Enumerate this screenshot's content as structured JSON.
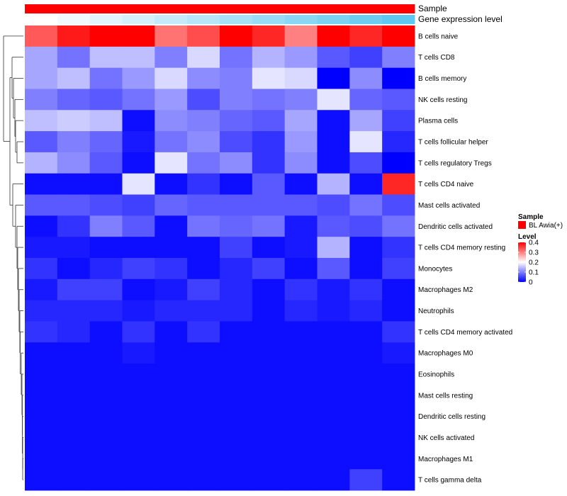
{
  "chart_data": {
    "type": "heatmap",
    "title": "",
    "xlabel": "",
    "ylabel": "",
    "annotation_tracks": [
      {
        "name": "Sample",
        "values": [
          "BL Awia(+)",
          "BL Awia(+)",
          "BL Awia(+)",
          "BL Awia(+)",
          "BL Awia(+)",
          "BL Awia(+)",
          "BL Awia(+)",
          "BL Awia(+)",
          "BL Awia(+)",
          "BL Awia(+)",
          "BL Awia(+)",
          "BL Awia(+)"
        ]
      },
      {
        "name": "Gene expression level",
        "values": [
          0.0,
          0.09,
          0.18,
          0.27,
          0.36,
          0.45,
          0.55,
          0.64,
          0.73,
          0.82,
          0.91,
          1.0
        ]
      }
    ],
    "rows": [
      "B cells naive",
      "T cells CD8",
      "B cells memory",
      "NK cells resting",
      "Plasma cells",
      "T cells follicular helper",
      "T cells regulatory  Tregs",
      "T cells CD4 naive",
      "Mast cells activated",
      "Dendritic cells activated",
      "T cells CD4 memory resting",
      "Monocytes",
      "Macrophages M2",
      "Neutrophils",
      "T cells CD4 memory activated",
      "Macrophages M0",
      "Eosinophils",
      "Mast cells resting",
      "Dendritic cells resting",
      "NK cells activated",
      "Macrophages M1",
      "T cells gamma delta"
    ],
    "values": [
      [
        0.33,
        0.38,
        0.4,
        0.42,
        0.31,
        0.34,
        0.42,
        0.37,
        0.3,
        0.42,
        0.37,
        0.4
      ],
      [
        0.13,
        0.09,
        0.15,
        0.15,
        0.1,
        0.17,
        0.09,
        0.14,
        0.12,
        0.07,
        0.05,
        0.1
      ],
      [
        0.13,
        0.15,
        0.09,
        0.12,
        0.17,
        0.11,
        0.1,
        0.18,
        0.17,
        0.0,
        0.11,
        0.0
      ],
      [
        0.1,
        0.08,
        0.07,
        0.09,
        0.12,
        0.06,
        0.1,
        0.09,
        0.1,
        0.18,
        0.08,
        0.07
      ],
      [
        0.15,
        0.16,
        0.15,
        0.01,
        0.11,
        0.1,
        0.08,
        0.07,
        0.13,
        0.01,
        0.13,
        0.05
      ],
      [
        0.07,
        0.1,
        0.08,
        0.02,
        0.09,
        0.11,
        0.06,
        0.04,
        0.12,
        0.01,
        0.18,
        0.03
      ],
      [
        0.14,
        0.11,
        0.07,
        0.01,
        0.18,
        0.09,
        0.11,
        0.04,
        0.11,
        0.01,
        0.06,
        0.0
      ],
      [
        0.01,
        0.01,
        0.01,
        0.18,
        0.01,
        0.04,
        0.01,
        0.07,
        0.01,
        0.14,
        0.01,
        0.37
      ],
      [
        0.07,
        0.07,
        0.06,
        0.05,
        0.08,
        0.07,
        0.07,
        0.07,
        0.07,
        0.06,
        0.09,
        0.06
      ],
      [
        0.01,
        0.04,
        0.1,
        0.07,
        0.01,
        0.09,
        0.08,
        0.09,
        0.02,
        0.07,
        0.06,
        0.09
      ],
      [
        0.02,
        0.02,
        0.01,
        0.01,
        0.01,
        0.01,
        0.05,
        0.01,
        0.02,
        0.14,
        0.01,
        0.04
      ],
      [
        0.04,
        0.01,
        0.03,
        0.05,
        0.04,
        0.01,
        0.03,
        0.05,
        0.01,
        0.07,
        0.01,
        0.05
      ],
      [
        0.02,
        0.05,
        0.05,
        0.01,
        0.02,
        0.05,
        0.03,
        0.01,
        0.04,
        0.02,
        0.04,
        0.01
      ],
      [
        0.03,
        0.03,
        0.03,
        0.02,
        0.03,
        0.03,
        0.03,
        0.01,
        0.03,
        0.02,
        0.03,
        0.01
      ],
      [
        0.04,
        0.03,
        0.01,
        0.04,
        0.01,
        0.04,
        0.01,
        0.01,
        0.01,
        0.01,
        0.01,
        0.04
      ],
      [
        0.01,
        0.01,
        0.01,
        0.02,
        0.01,
        0.01,
        0.01,
        0.01,
        0.01,
        0.01,
        0.01,
        0.02
      ],
      [
        0.01,
        0.01,
        0.01,
        0.01,
        0.01,
        0.01,
        0.01,
        0.01,
        0.01,
        0.01,
        0.01,
        0.01
      ],
      [
        0.01,
        0.01,
        0.01,
        0.01,
        0.01,
        0.01,
        0.01,
        0.01,
        0.01,
        0.01,
        0.01,
        0.01
      ],
      [
        0.01,
        0.01,
        0.01,
        0.01,
        0.01,
        0.01,
        0.01,
        0.01,
        0.01,
        0.01,
        0.01,
        0.01
      ],
      [
        0.01,
        0.01,
        0.01,
        0.01,
        0.01,
        0.01,
        0.01,
        0.01,
        0.01,
        0.01,
        0.01,
        0.01
      ],
      [
        0.01,
        0.01,
        0.01,
        0.01,
        0.01,
        0.01,
        0.01,
        0.01,
        0.01,
        0.01,
        0.01,
        0.01
      ],
      [
        0.01,
        0.01,
        0.01,
        0.01,
        0.01,
        0.01,
        0.01,
        0.01,
        0.01,
        0.01,
        0.05,
        0.01
      ]
    ],
    "legend": {
      "sample_title": "Sample",
      "sample_label": "BL Awia(+)",
      "sample_color": "#ff0000",
      "level_title": "Level",
      "level_ticks": [
        0.4,
        0.3,
        0.2,
        0.1,
        0
      ],
      "level_range": [
        0,
        0.4
      ],
      "position": "right"
    },
    "colors": {
      "low": "#0000ff",
      "mid": "#ffffff",
      "high": "#ff0000",
      "track_low": "#ffffff",
      "track_high": "#5ec8f0"
    },
    "dendrogram": "left, rows clustered"
  }
}
